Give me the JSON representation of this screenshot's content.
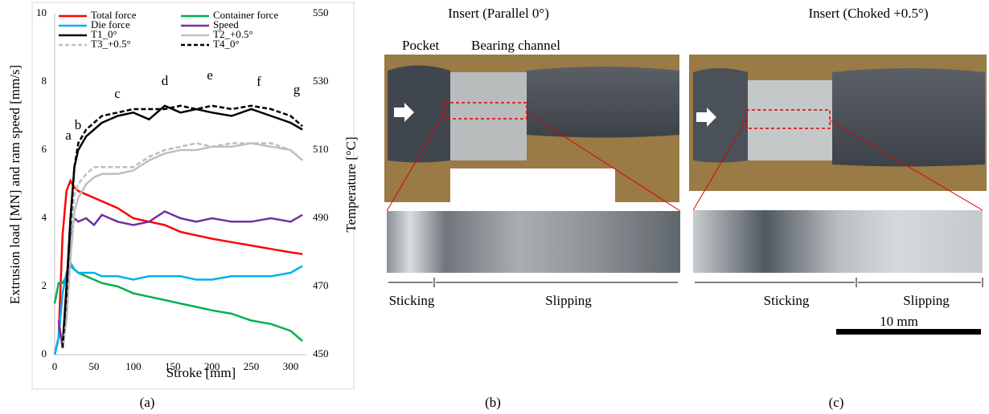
{
  "chart_data": {
    "type": "line",
    "caption": "(a)",
    "xlabel": "Stroke [mm]",
    "ylabel": "Extrusion load [MN] and ram speed [mm/s]",
    "y2label": "Temperature [°C]",
    "annotations": [
      "a",
      "b",
      "c",
      "d",
      "e",
      "f",
      "g"
    ],
    "x": [
      0,
      5,
      10,
      15,
      20,
      25,
      30,
      40,
      50,
      60,
      80,
      100,
      120,
      140,
      160,
      180,
      200,
      225,
      250,
      275,
      300,
      315
    ],
    "xlim": [
      0,
      320
    ],
    "xticks": [
      0,
      50,
      100,
      150,
      200,
      250,
      300
    ],
    "ylim": [
      0,
      10
    ],
    "yticks": [
      0,
      2,
      4,
      6,
      8,
      10
    ],
    "y2lim": [
      450,
      550
    ],
    "y2ticks": [
      450,
      470,
      490,
      510,
      530,
      550
    ],
    "series": [
      {
        "name": "Total force",
        "color": "#ff0000",
        "values": [
          0,
          0.5,
          3.5,
          4.8,
          5.1,
          4.9,
          4.8,
          4.7,
          4.6,
          4.5,
          4.3,
          4.0,
          3.9,
          3.8,
          3.6,
          3.5,
          3.4,
          3.3,
          3.2,
          3.1,
          3.0,
          2.95
        ]
      },
      {
        "name": "Container force",
        "color": "#00b050",
        "values": [
          1.5,
          2.1,
          2.1,
          2.3,
          2.6,
          2.5,
          2.4,
          2.3,
          2.2,
          2.1,
          2.0,
          1.8,
          1.7,
          1.6,
          1.5,
          1.4,
          1.3,
          1.2,
          1.0,
          0.9,
          0.7,
          0.4
        ]
      },
      {
        "name": "Die force",
        "color": "#00b0f0",
        "values": [
          0,
          0.5,
          1.8,
          2.4,
          2.7,
          2.5,
          2.4,
          2.4,
          2.4,
          2.3,
          2.3,
          2.2,
          2.3,
          2.3,
          2.3,
          2.2,
          2.2,
          2.3,
          2.3,
          2.3,
          2.4,
          2.6
        ]
      },
      {
        "name": "Speed",
        "color": "#7030a0",
        "values": [
          null,
          1.0,
          0.2,
          2.0,
          3.5,
          4.0,
          3.9,
          4.0,
          3.8,
          4.1,
          3.9,
          3.8,
          3.9,
          4.2,
          4.0,
          3.9,
          4.0,
          3.9,
          3.9,
          4.0,
          3.9,
          4.1
        ]
      },
      {
        "name": "T1_0°",
        "color": "#000000",
        "axis": "y2",
        "values": [
          null,
          null,
          452,
          470,
          490,
          505,
          510,
          514,
          516,
          518,
          520,
          521,
          519,
          523,
          521,
          522,
          521,
          520,
          522,
          520,
          518,
          516
        ]
      },
      {
        "name": "T2_+0.5°",
        "color": "#bfbfbf",
        "axis": "y2",
        "values": [
          null,
          null,
          452,
          460,
          478,
          492,
          496,
          500,
          502,
          503,
          503,
          504,
          507,
          509,
          510,
          510,
          511,
          511,
          512,
          511,
          510,
          507
        ]
      },
      {
        "name": "T3_+0.5°",
        "color": "#bfbfbf",
        "axis": "y2",
        "dashed": true,
        "values": [
          null,
          null,
          452,
          465,
          485,
          497,
          500,
          503,
          505,
          505,
          505,
          505,
          508,
          510,
          511,
          512,
          511,
          512,
          512,
          512,
          510,
          507
        ]
      },
      {
        "name": "T4_0°",
        "color": "#000000",
        "axis": "y2",
        "dashed": true,
        "values": [
          null,
          null,
          452,
          468,
          488,
          505,
          512,
          516,
          518,
          520,
          521,
          522,
          522,
          522,
          523,
          522,
          523,
          522,
          523,
          522,
          520,
          517
        ]
      }
    ]
  },
  "panel_b": {
    "title": "Insert (Parallel 0°)",
    "pocket": "Pocket",
    "channel": "Bearing channel",
    "sticking": "Sticking",
    "slipping": "Slipping",
    "caption": "(b)"
  },
  "panel_c": {
    "title": "Insert (Choked +0.5°)",
    "sticking": "Sticking",
    "slipping": "Slipping",
    "scale": "10 mm",
    "caption": "(c)"
  }
}
